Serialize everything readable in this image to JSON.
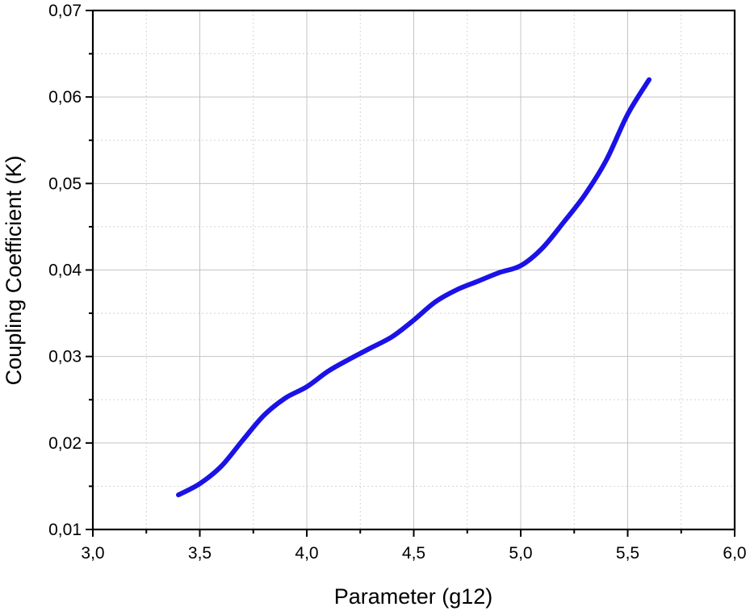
{
  "chart_data": {
    "type": "line",
    "title": "",
    "xlabel": "Parameter (g12)",
    "ylabel": "Coupling Coefficient (K)",
    "xlim": [
      3.0,
      6.0
    ],
    "ylim": [
      0.01,
      0.07
    ],
    "x_ticks": [
      "3,0",
      "3,5",
      "4,0",
      "4,5",
      "5,0",
      "5,5",
      "6,0"
    ],
    "y_ticks": [
      "0,01",
      "0,02",
      "0,03",
      "0,04",
      "0,05",
      "0,06",
      "0,07"
    ],
    "x_tick_values": [
      3.0,
      3.5,
      4.0,
      4.5,
      5.0,
      5.5,
      6.0
    ],
    "y_tick_values": [
      0.01,
      0.02,
      0.03,
      0.04,
      0.05,
      0.06,
      0.07
    ],
    "grid": true,
    "legend": false,
    "line_color": "#1a12e6",
    "series": [
      {
        "x": [
          3.4,
          3.5,
          3.6,
          3.7,
          3.8,
          3.9,
          4.0,
          4.1,
          4.2,
          4.3,
          4.4,
          4.5,
          4.6,
          4.7,
          4.8,
          4.9,
          5.0,
          5.1,
          5.2,
          5.3,
          5.4,
          5.5,
          5.6
        ],
        "y": [
          0.014,
          0.0153,
          0.0173,
          0.0203,
          0.0232,
          0.0252,
          0.0265,
          0.0283,
          0.0297,
          0.031,
          0.0323,
          0.0342,
          0.0363,
          0.0377,
          0.0387,
          0.0397,
          0.0405,
          0.0425,
          0.0455,
          0.0487,
          0.0527,
          0.058,
          0.062
        ]
      }
    ]
  }
}
